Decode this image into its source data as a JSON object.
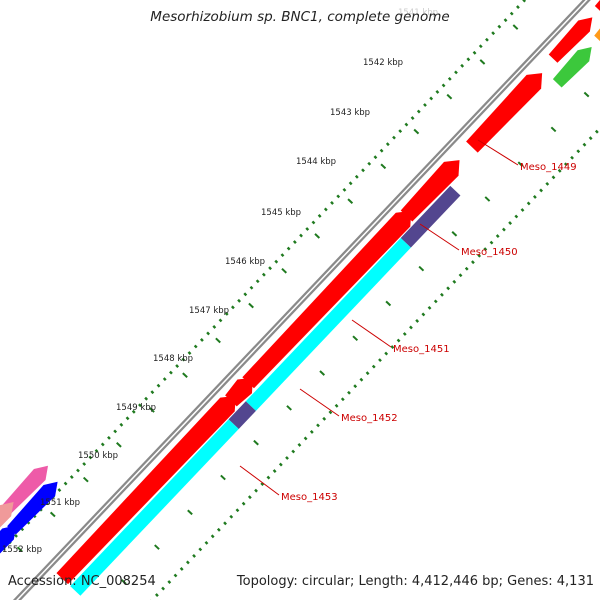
{
  "title": "Mesorhizobium sp. BNC1, complete genome",
  "footer": {
    "accession": "Accession: NC_008254",
    "summary": "Topology: circular; Length: 4,412,446 bp; Genes: 4,131"
  },
  "colors": {
    "background": "#ffffff",
    "backbone": "#8a8a8a",
    "ruler_ticks": "#1f7a1f",
    "gene_label": "#cc0000",
    "red_gene": "#ff0000",
    "cyan_gene": "#00ffff",
    "purple_gene": "#53468f",
    "orange_gene": "#ff9a1a",
    "green_gene": "#3cc83c",
    "pink_gene": "#ee5ba8",
    "salmon_gene": "#f09a9a",
    "blue_gene": "#0000ff"
  },
  "ruler": {
    "labels": [
      "1541 kbp",
      "1542 kbp",
      "1543 kbp",
      "1544 kbp",
      "1545 kbp",
      "1546 kbp",
      "1547 kbp",
      "1548 kbp",
      "1549 kbp",
      "1550 kbp",
      "1551 kbp",
      "1552 kbp"
    ]
  },
  "genes": [
    {
      "name": "Meso_1449",
      "color": "red_gene"
    },
    {
      "name": "Meso_1450",
      "color": "purple_gene"
    },
    {
      "name": "Meso_1451",
      "color": "cyan_gene"
    },
    {
      "name": "Meso_1452",
      "color": "purple_gene"
    },
    {
      "name": "Meso_1453",
      "color": "cyan_gene"
    }
  ]
}
